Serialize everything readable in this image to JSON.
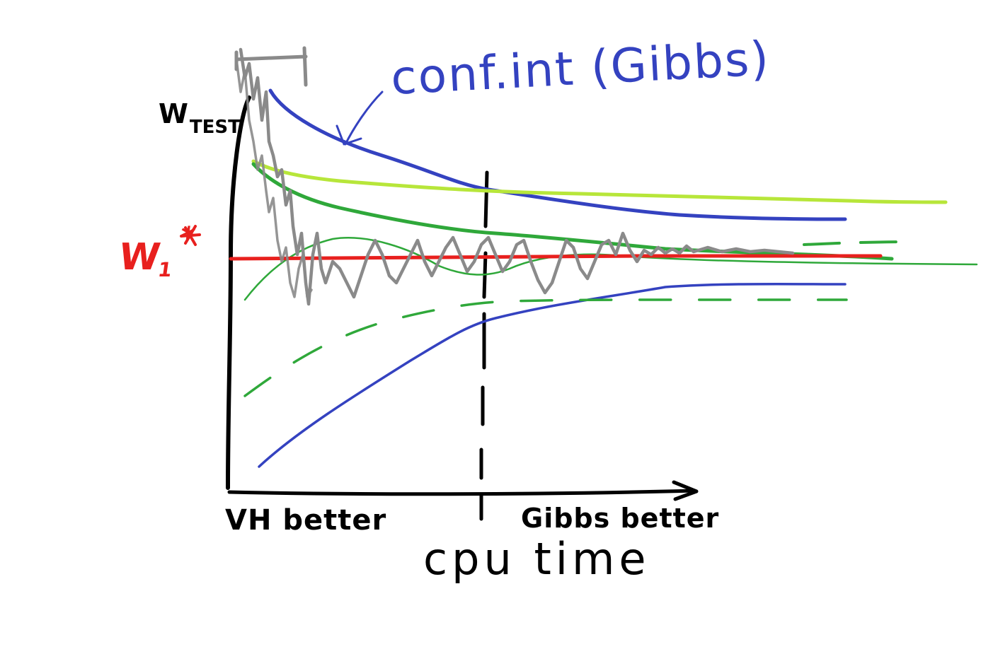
{
  "labels": {
    "conf_int": "conf.int (Gibbs)",
    "w_test_main": "W",
    "w_test_sub": "TEST",
    "w1_main": "W",
    "w1_sub": "1",
    "w1_star": "*",
    "vh_better": "VH better",
    "gibbs_better": "Gibbs better",
    "x_axis": "cpu time"
  },
  "colors": {
    "axis": "#000000",
    "blue_conf": "#3442c0",
    "lime_line": "#b7e63a",
    "green_line": "#2fa83a",
    "red_target": "#e8201e",
    "gray_trace": "#8a8a8a",
    "divider": "#000000"
  }
}
